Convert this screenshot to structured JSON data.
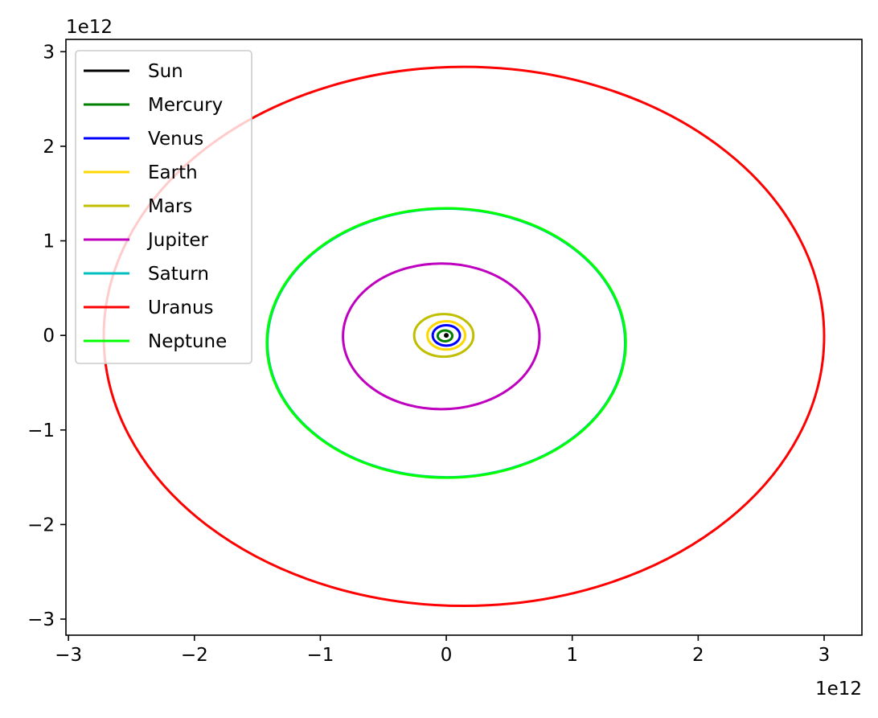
{
  "chart_data": {
    "type": "line",
    "title": "",
    "xlabel": "",
    "ylabel": "",
    "x_offset_label": "1e12",
    "y_offset_label": "1e12",
    "xlim": [
      -3.02,
      3.3
    ],
    "ylim": [
      -3.17,
      3.13
    ],
    "x_ticks": [
      -3,
      -2,
      -1,
      0,
      1,
      2,
      3
    ],
    "y_ticks": [
      -3,
      -2,
      -1,
      0,
      1,
      2,
      3
    ],
    "x_tick_labels": [
      "−3",
      "−2",
      "−1",
      "0",
      "1",
      "2",
      "3"
    ],
    "y_tick_labels": [
      "−3",
      "−2",
      "−1",
      "0",
      "1",
      "2",
      "3"
    ],
    "grid": false,
    "legend_position": "upper-left",
    "series": [
      {
        "name": "Sun",
        "color": "#000000",
        "orbit": {
          "cx": 0.0,
          "cy": 0.0,
          "rx": 0.003,
          "ry": 0.003
        }
      },
      {
        "name": "Mercury",
        "color": "#008000",
        "orbit": {
          "cx": -0.01,
          "cy": -0.005,
          "rx": 0.058,
          "ry": 0.057
        }
      },
      {
        "name": "Venus",
        "color": "#0000ff",
        "orbit": {
          "cx": 0.0,
          "cy": 0.0,
          "rx": 0.108,
          "ry": 0.108
        }
      },
      {
        "name": "Earth",
        "color": "#ffd700",
        "orbit": {
          "cx": 0.0,
          "cy": 0.0,
          "rx": 0.15,
          "ry": 0.15
        }
      },
      {
        "name": "Mars",
        "color": "#bfbf00",
        "orbit": {
          "cx": -0.02,
          "cy": 0.0,
          "rx": 0.235,
          "ry": 0.225
        }
      },
      {
        "name": "Jupiter",
        "color": "#bf00bf",
        "orbit": {
          "cx": -0.04,
          "cy": -0.01,
          "rx": 0.78,
          "ry": 0.77
        }
      },
      {
        "name": "Saturn",
        "color": "#00bfbf",
        "orbit": {
          "cx": 0.0,
          "cy": -0.08,
          "rx": 1.42,
          "ry": 1.42
        }
      },
      {
        "name": "Uranus",
        "color": "#ff0000",
        "orbit": {
          "cx": 0.14,
          "cy": -0.01,
          "rx": 2.86,
          "ry": 2.85
        }
      },
      {
        "name": "Neptune",
        "color": "#00ff00",
        "orbit": {
          "cx": 0.0,
          "cy": -0.08,
          "rx": 1.425,
          "ry": 1.425
        }
      }
    ]
  }
}
